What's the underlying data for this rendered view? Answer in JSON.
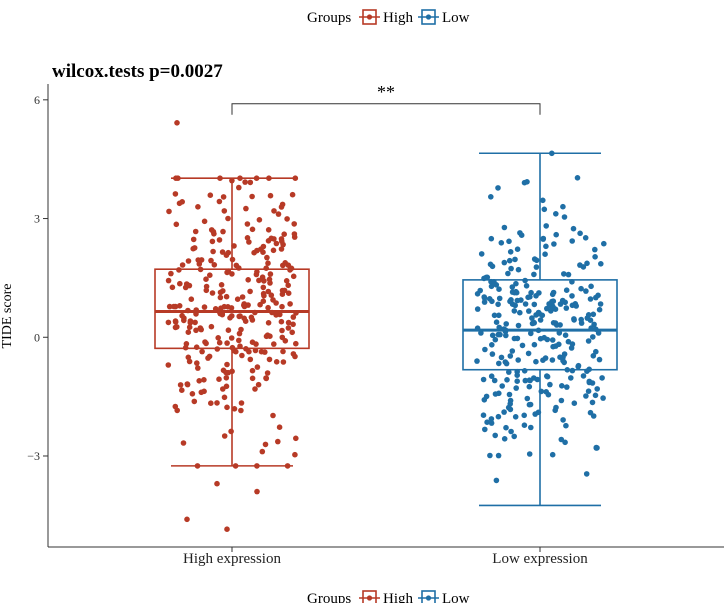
{
  "chart_data": {
    "type": "box",
    "title": "wilcox.tests p=0.0027",
    "ylabel": "TIDE score",
    "xlabel": "",
    "ylim": [
      -5.3,
      6.4
    ],
    "yticks": [
      -3,
      0,
      3,
      6
    ],
    "yticklabels": [
      "−3",
      "0",
      "3",
      "6"
    ],
    "categories": [
      "High expression",
      "Low expression"
    ],
    "legend": {
      "title": "Groups",
      "placement": "top",
      "entries": [
        "High",
        "Low"
      ]
    },
    "colors": {
      "High": "#b73a26",
      "Low": "#1f6fa6"
    },
    "significance": {
      "label": "**",
      "between": [
        0,
        1
      ],
      "y": 5.9
    },
    "grid": false,
    "series": [
      {
        "name": "High",
        "category": "High expression",
        "whisker_low": -3.25,
        "q1": -0.28,
        "median": 0.65,
        "q3": 1.72,
        "whisker_high": 4.02,
        "outliers": [
          5.42,
          -3.7,
          -3.9,
          -4.6,
          -4.85
        ],
        "n_points": 300,
        "mean": 0.7,
        "sd": 1.6
      },
      {
        "name": "Low",
        "category": "Low expression",
        "whisker_low": -4.25,
        "q1": -0.82,
        "median": 0.18,
        "q3": 1.45,
        "whisker_high": 4.65,
        "outliers": [],
        "n_points": 300,
        "mean": 0.2,
        "sd": 1.6
      }
    ]
  }
}
